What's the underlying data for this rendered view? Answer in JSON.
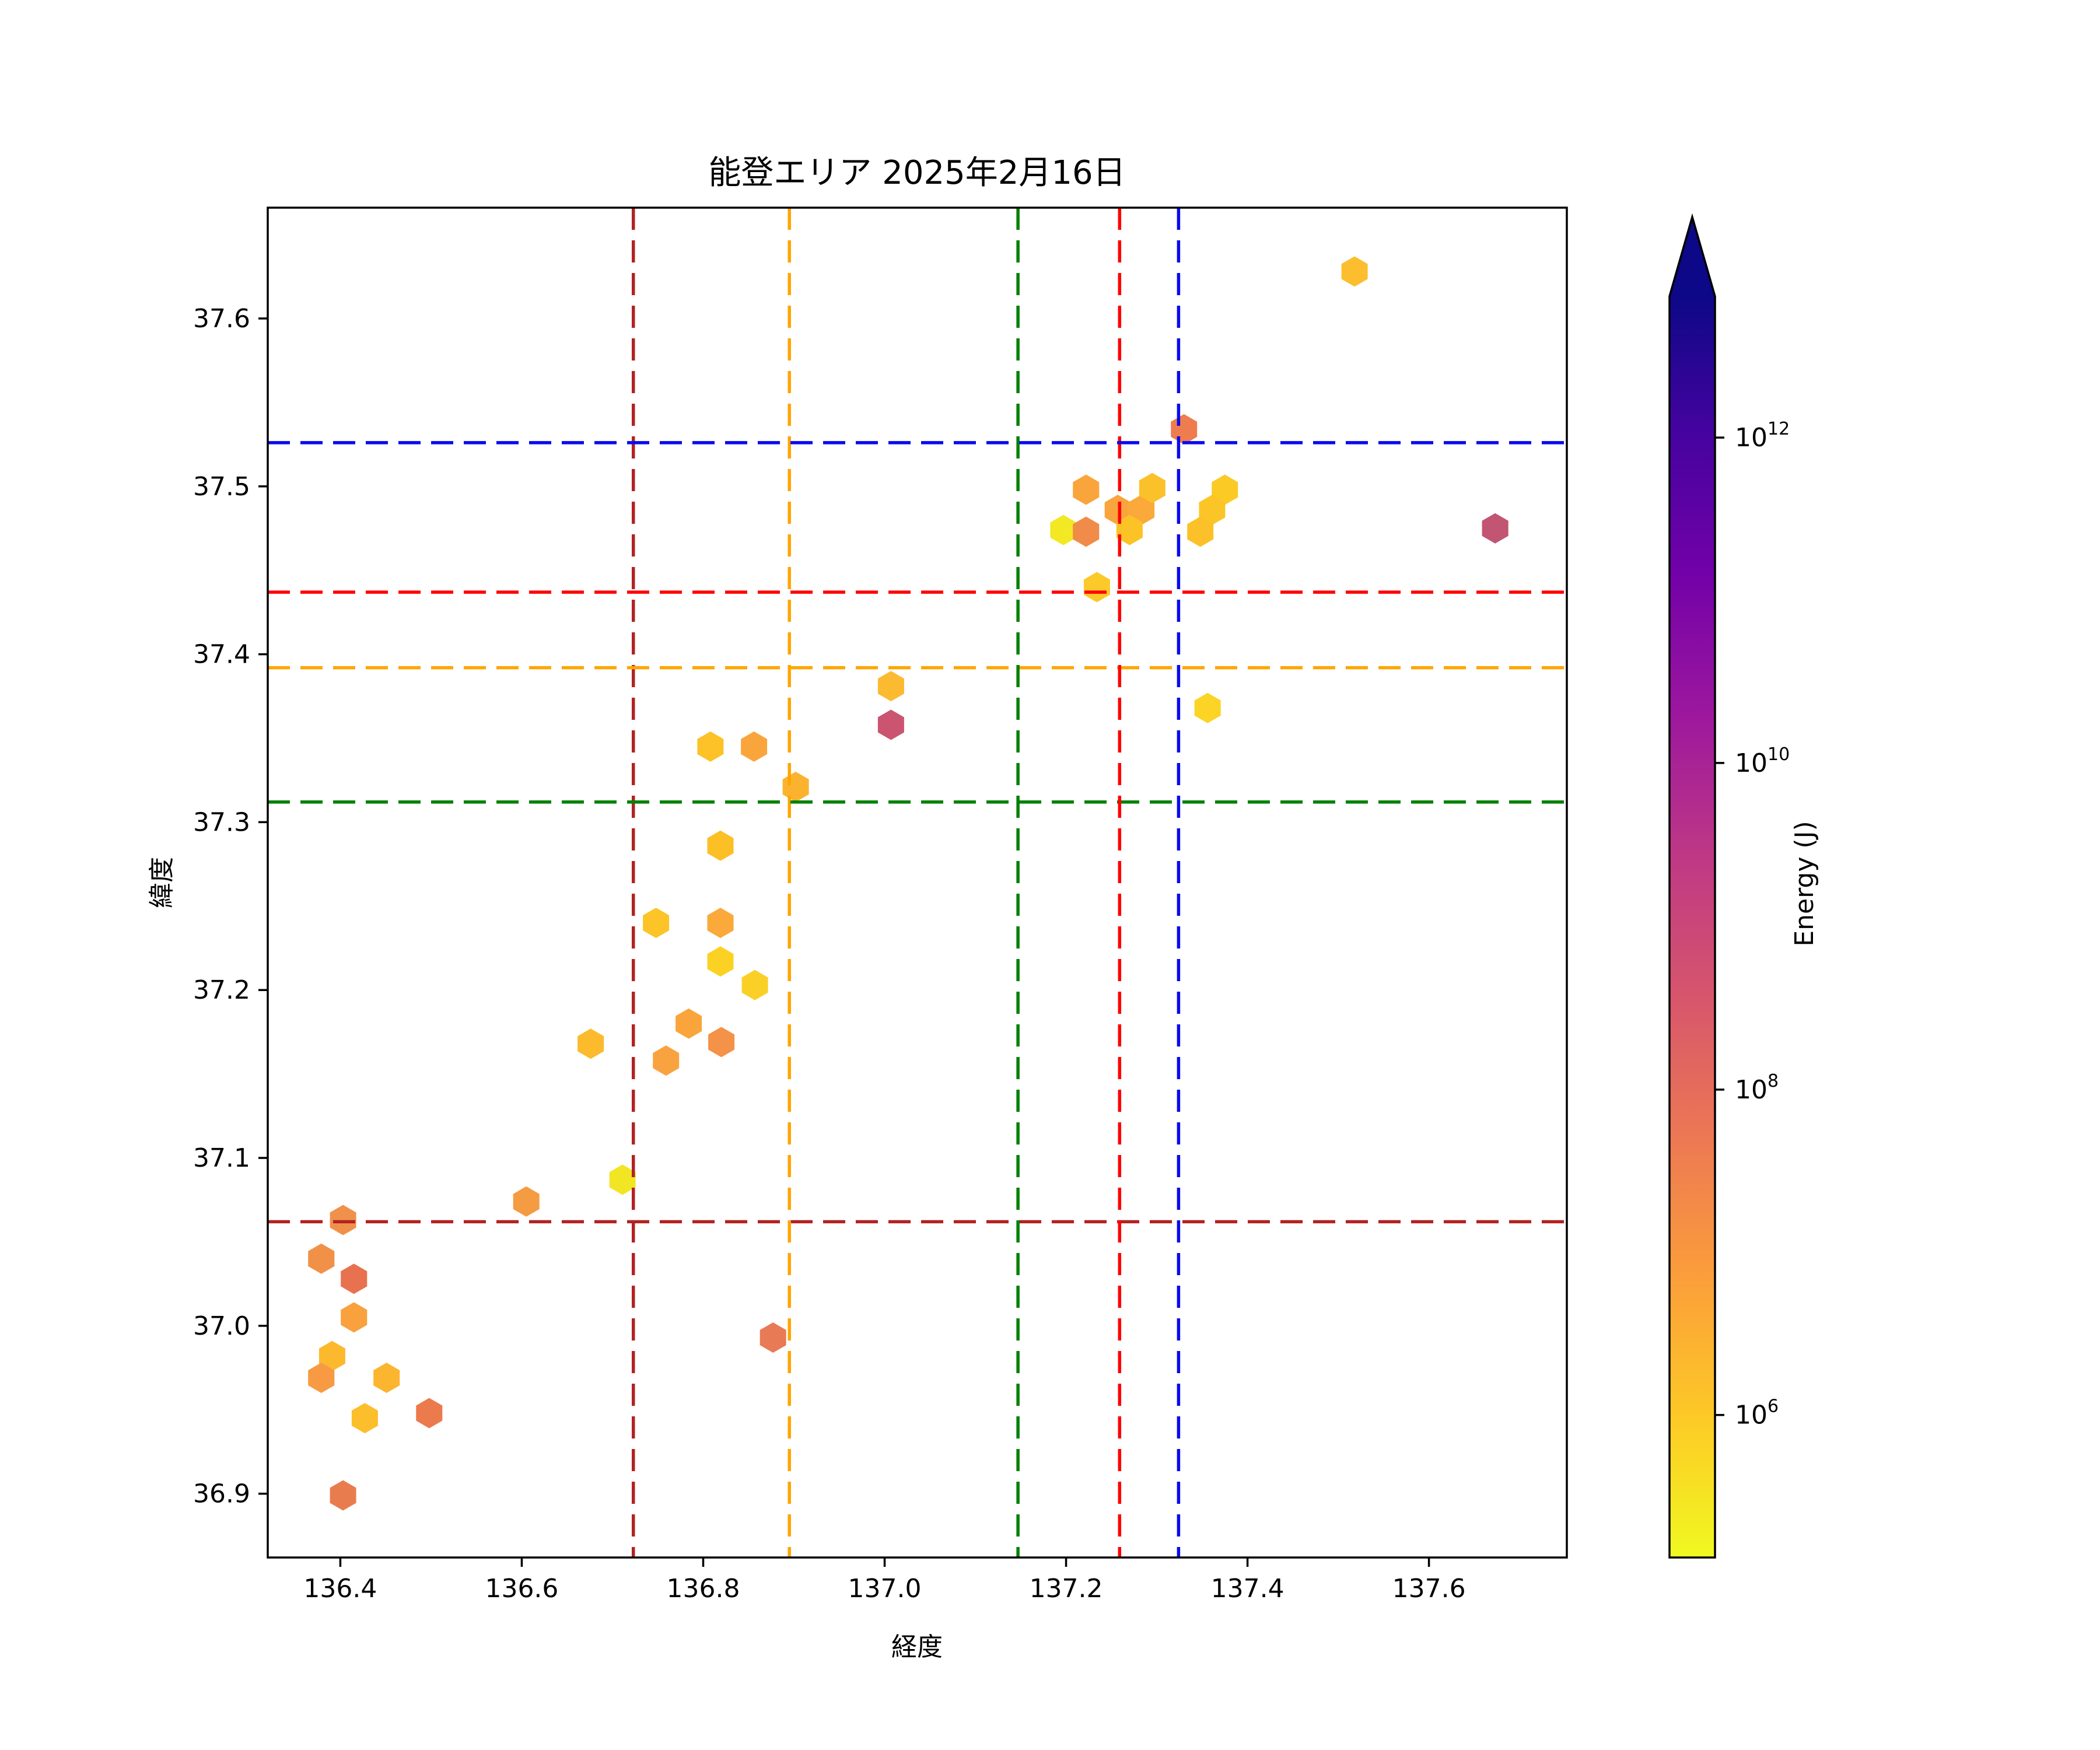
{
  "title": "能登エリア 2025年2月16日",
  "chart_data": {
    "type": "scatter",
    "marker": "hexagon",
    "xlabel": "経度",
    "ylabel": "緯度",
    "xlim": [
      136.32,
      137.752
    ],
    "ylim": [
      36.862,
      37.666
    ],
    "x_ticks": [
      136.4,
      136.6,
      136.8,
      137.0,
      137.2,
      137.4,
      137.6
    ],
    "x_tick_labels": [
      "136.4",
      "136.6",
      "136.8",
      "137.0",
      "137.2",
      "137.4",
      "137.6"
    ],
    "y_ticks": [
      36.9,
      37.0,
      37.1,
      37.2,
      37.3,
      37.4,
      37.5,
      37.6
    ],
    "y_tick_labels": [
      "36.9",
      "37.0",
      "37.1",
      "37.2",
      "37.3",
      "37.4",
      "37.5",
      "37.6"
    ],
    "grid": false,
    "legend": "none",
    "points": [
      {
        "lon": 136.379,
        "lat": 37.04,
        "energy_j": 4000000,
        "color": "#f19148"
      },
      {
        "lon": 136.403,
        "lat": 37.063,
        "energy_j": 4000000,
        "color": "#f0914b"
      },
      {
        "lon": 136.415,
        "lat": 37.028,
        "energy_j": 15000000,
        "color": "#e8724f"
      },
      {
        "lon": 136.415,
        "lat": 37.005,
        "energy_j": 2500000,
        "color": "#f9a13d"
      },
      {
        "lon": 136.391,
        "lat": 36.982,
        "energy_j": 1000000,
        "color": "#fcb92e"
      },
      {
        "lon": 136.379,
        "lat": 36.969,
        "energy_j": 3000000,
        "color": "#f79a43"
      },
      {
        "lon": 136.451,
        "lat": 36.969,
        "energy_j": 1000000,
        "color": "#fcb52f"
      },
      {
        "lon": 136.427,
        "lat": 36.945,
        "energy_j": 900000,
        "color": "#fcbe2b"
      },
      {
        "lon": 136.498,
        "lat": 36.948,
        "energy_j": 10000000,
        "color": "#eb7a4d"
      },
      {
        "lon": 136.403,
        "lat": 36.899,
        "energy_j": 10000000,
        "color": "#e97c4e"
      },
      {
        "lon": 136.605,
        "lat": 37.074,
        "energy_j": 3000000,
        "color": "#f59b42"
      },
      {
        "lon": 136.711,
        "lat": 37.087,
        "energy_j": 200000,
        "color": "#f2e524"
      },
      {
        "lon": 136.877,
        "lat": 36.993,
        "energy_j": 12000000,
        "color": "#e87a55"
      },
      {
        "lon": 136.808,
        "lat": 37.345,
        "energy_j": 700000,
        "color": "#fcc228"
      },
      {
        "lon": 136.856,
        "lat": 37.345,
        "energy_j": 2500000,
        "color": "#faa53c"
      },
      {
        "lon": 136.902,
        "lat": 37.321,
        "energy_j": 1300000,
        "color": "#fbb32f"
      },
      {
        "lon": 136.819,
        "lat": 37.286,
        "energy_j": 800000,
        "color": "#fcc026"
      },
      {
        "lon": 136.748,
        "lat": 37.24,
        "energy_j": 600000,
        "color": "#fcc427"
      },
      {
        "lon": 136.819,
        "lat": 37.24,
        "energy_j": 2000000,
        "color": "#faa93a"
      },
      {
        "lon": 136.819,
        "lat": 37.217,
        "energy_j": 400000,
        "color": "#fbd224"
      },
      {
        "lon": 136.857,
        "lat": 37.203,
        "energy_j": 400000,
        "color": "#fbd026"
      },
      {
        "lon": 136.784,
        "lat": 37.18,
        "energy_j": 2500000,
        "color": "#faa43c"
      },
      {
        "lon": 136.82,
        "lat": 37.169,
        "energy_j": 5000000,
        "color": "#f49247"
      },
      {
        "lon": 136.676,
        "lat": 37.168,
        "energy_j": 900000,
        "color": "#fcbb2c"
      },
      {
        "lon": 136.759,
        "lat": 37.158,
        "energy_j": 2700000,
        "color": "#f9a340"
      },
      {
        "lon": 137.007,
        "lat": 37.381,
        "energy_j": 1000000,
        "color": "#fbba30"
      },
      {
        "lon": 137.007,
        "lat": 37.358,
        "energy_j": 300000000,
        "color": "#cb5470"
      },
      {
        "lon": 137.222,
        "lat": 37.498,
        "energy_j": 2500000,
        "color": "#faa53c"
      },
      {
        "lon": 137.197,
        "lat": 37.474,
        "energy_j": 200000,
        "color": "#f2e824"
      },
      {
        "lon": 137.222,
        "lat": 37.473,
        "energy_j": 7000000,
        "color": "#f08b49"
      },
      {
        "lon": 137.257,
        "lat": 37.486,
        "energy_j": 2600000,
        "color": "#f9a43d"
      },
      {
        "lon": 137.283,
        "lat": 37.486,
        "energy_j": 2000000,
        "color": "#faa93a"
      },
      {
        "lon": 137.295,
        "lat": 37.499,
        "energy_j": 750000,
        "color": "#fbc12a"
      },
      {
        "lon": 137.27,
        "lat": 37.474,
        "energy_j": 650000,
        "color": "#fcc327"
      },
      {
        "lon": 137.375,
        "lat": 37.498,
        "energy_j": 500000,
        "color": "#fcca25"
      },
      {
        "lon": 137.361,
        "lat": 37.486,
        "energy_j": 600000,
        "color": "#fcc527"
      },
      {
        "lon": 137.348,
        "lat": 37.473,
        "energy_j": 700000,
        "color": "#fcc128"
      },
      {
        "lon": 137.234,
        "lat": 37.44,
        "energy_j": 550000,
        "color": "#fcc92a"
      },
      {
        "lon": 137.33,
        "lat": 37.534,
        "energy_j": 9000000,
        "color": "#ef7c4f"
      },
      {
        "lon": 137.356,
        "lat": 37.368,
        "energy_j": 350000,
        "color": "#fbd426"
      },
      {
        "lon": 137.518,
        "lat": 37.628,
        "energy_j": 850000,
        "color": "#fcbe2e"
      },
      {
        "lon": 137.673,
        "lat": 37.475,
        "energy_j": 600000000,
        "color": "#c25572"
      }
    ],
    "crosshairs": [
      {
        "name": "crosshair-firebrick",
        "color": "#b22222",
        "lon": 136.723,
        "lat": 37.062
      },
      {
        "name": "crosshair-orange",
        "color": "#ffa500",
        "lon": 136.895,
        "lat": 37.392
      },
      {
        "name": "crosshair-green",
        "color": "#008000",
        "lon": 137.147,
        "lat": 37.312
      },
      {
        "name": "crosshair-red",
        "color": "#ff0000",
        "lon": 137.259,
        "lat": 37.437
      },
      {
        "name": "crosshair-blue",
        "color": "#0909ee",
        "lon": 137.324,
        "lat": 37.526
      }
    ],
    "colorbar": {
      "label": "Energy (J)",
      "scale": "log",
      "extend": "max",
      "vmin": 130000,
      "vmax": 7200000000000,
      "tip_color": "#0d0887",
      "ticks": [
        {
          "base": "10",
          "exp": "12",
          "value": 1000000000000,
          "frac": 0.112
        },
        {
          "base": "10",
          "exp": "10",
          "value": 10000000000,
          "frac": 0.37
        },
        {
          "base": "10",
          "exp": "8",
          "value": 100000000,
          "frac": 0.629
        },
        {
          "base": "10",
          "exp": "6",
          "value": 1000000,
          "frac": 0.887
        }
      ],
      "gradient": [
        {
          "p": 0.0,
          "c": "#0d0887"
        },
        {
          "p": 0.11,
          "c": "#46039f"
        },
        {
          "p": 0.22,
          "c": "#7201a8"
        },
        {
          "p": 0.33,
          "c": "#9c179e"
        },
        {
          "p": 0.44,
          "c": "#bd3786"
        },
        {
          "p": 0.56,
          "c": "#d8576b"
        },
        {
          "p": 0.67,
          "c": "#ed7953"
        },
        {
          "p": 0.78,
          "c": "#fb9f3a"
        },
        {
          "p": 0.89,
          "c": "#fdca26"
        },
        {
          "p": 1.0,
          "c": "#f0f921"
        }
      ]
    }
  }
}
